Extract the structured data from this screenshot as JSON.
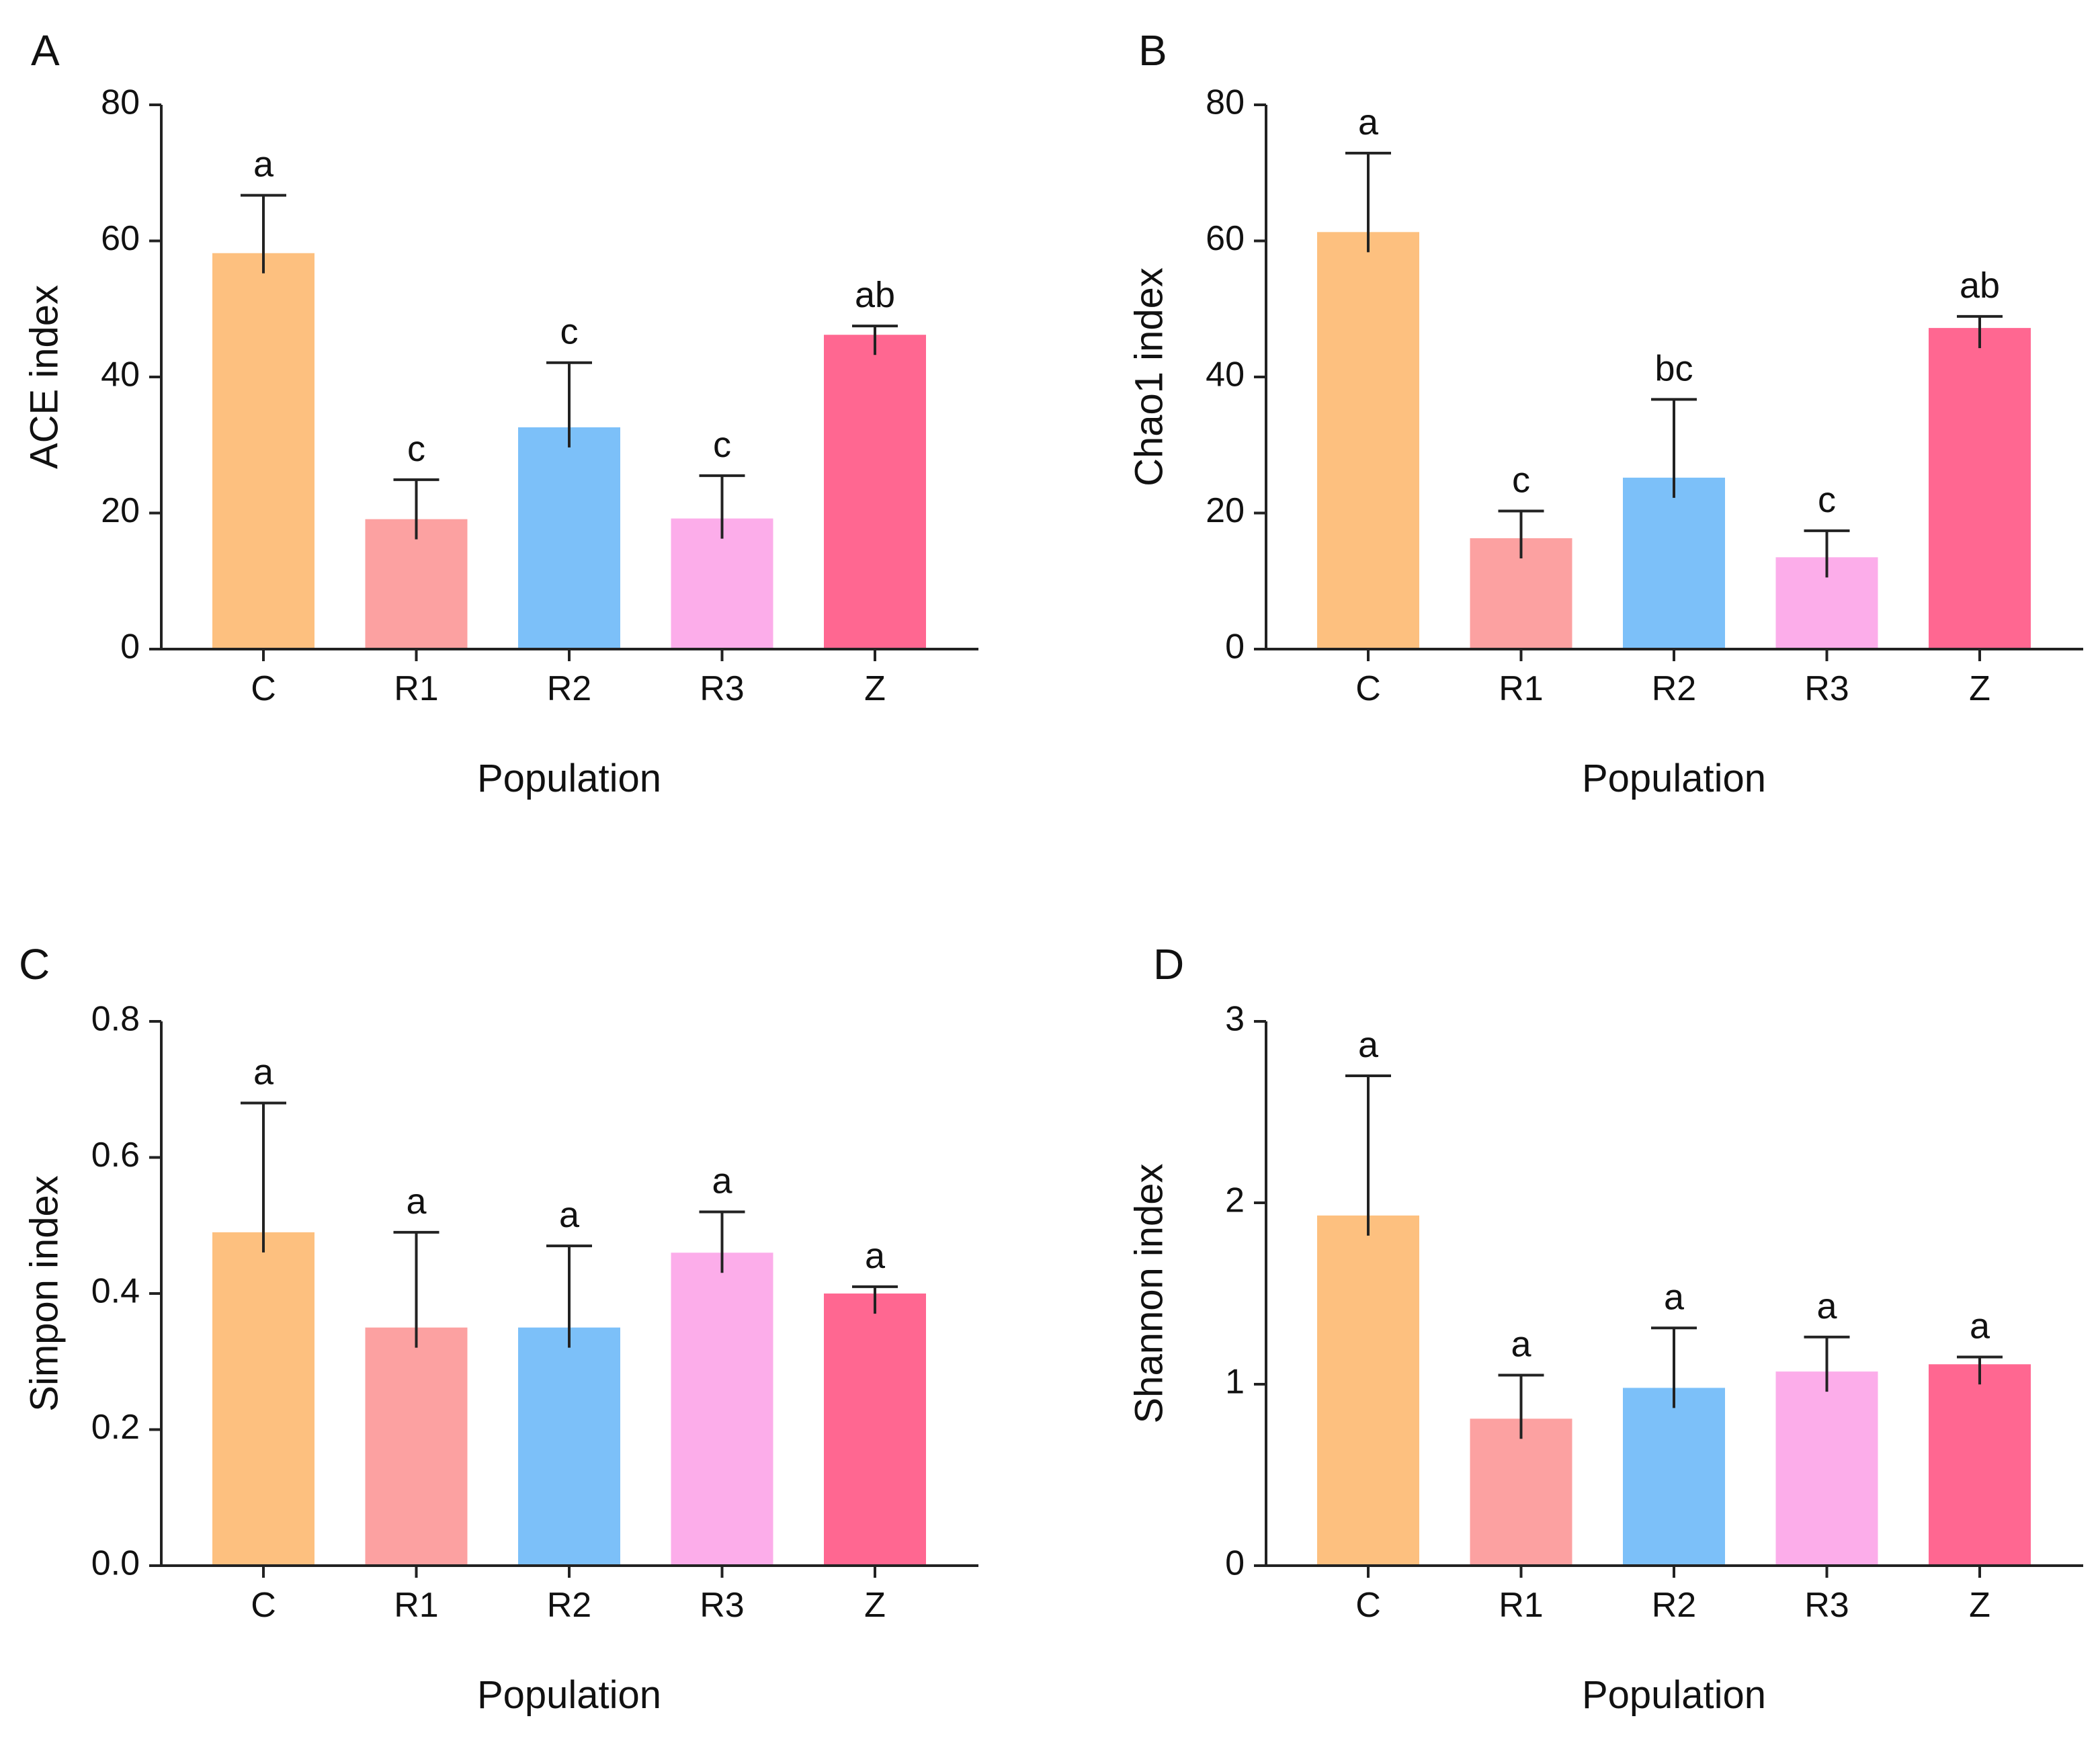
{
  "chart_data": [
    {
      "panel": "A",
      "type": "bar",
      "title": "",
      "xlabel": "Population",
      "ylabel": "ACE index",
      "categories": [
        "C",
        "R1",
        "R2",
        "R3",
        "Z"
      ],
      "values": [
        58.2,
        19.1,
        32.6,
        19.2,
        46.2
      ],
      "errors": [
        8.5,
        5.8,
        9.5,
        6.3,
        1.3
      ],
      "significance": [
        "a",
        "c",
        "c",
        "c",
        "ab"
      ],
      "colors": [
        "#FDC07F",
        "#FCA1A1",
        "#7CC0F9",
        "#FCADEA",
        "#FF6791"
      ],
      "ylim": [
        0,
        80
      ],
      "yticks": [
        0,
        20,
        40,
        60,
        80
      ],
      "ytick_labels": [
        "0",
        "20",
        "40",
        "60",
        "80"
      ]
    },
    {
      "panel": "B",
      "type": "bar",
      "title": "",
      "xlabel": "Population",
      "ylabel": "Chao1 index",
      "categories": [
        "C",
        "R1",
        "R2",
        "R3",
        "Z"
      ],
      "values": [
        61.3,
        16.3,
        25.2,
        13.5,
        47.2
      ],
      "errors": [
        11.6,
        4.0,
        11.5,
        3.9,
        1.7
      ],
      "significance": [
        "a",
        "c",
        "bc",
        "c",
        "ab"
      ],
      "colors": [
        "#FDC07F",
        "#FCA1A1",
        "#7CC0F9",
        "#FCADEA",
        "#FF6791"
      ],
      "ylim": [
        0,
        80
      ],
      "yticks": [
        0,
        20,
        40,
        60,
        80
      ],
      "ytick_labels": [
        "0",
        "20",
        "40",
        "60",
        "80"
      ]
    },
    {
      "panel": "C",
      "type": "bar",
      "title": "",
      "xlabel": "Population",
      "ylabel": "Simpon index",
      "categories": [
        "C",
        "R1",
        "R2",
        "R3",
        "Z"
      ],
      "values": [
        0.49,
        0.35,
        0.35,
        0.46,
        0.4
      ],
      "errors": [
        0.19,
        0.14,
        0.12,
        0.06,
        0.01
      ],
      "significance": [
        "a",
        "a",
        "a",
        "a",
        "a"
      ],
      "colors": [
        "#FDC07F",
        "#FCA1A1",
        "#7CC0F9",
        "#FCADEA",
        "#FF6791"
      ],
      "ylim": [
        0,
        0.8
      ],
      "yticks": [
        0,
        0.2,
        0.4,
        0.6,
        0.8
      ],
      "ytick_labels": [
        "0.0",
        "0.2",
        "0.4",
        "0.6",
        "0.8"
      ]
    },
    {
      "panel": "D",
      "type": "bar",
      "title": "",
      "xlabel": "Population",
      "ylabel": "Shannon index",
      "categories": [
        "C",
        "R1",
        "R2",
        "R3",
        "Z"
      ],
      "values": [
        1.93,
        0.81,
        0.98,
        1.07,
        1.11
      ],
      "errors": [
        0.77,
        0.24,
        0.33,
        0.19,
        0.04
      ],
      "significance": [
        "a",
        "a",
        "a",
        "a",
        "a"
      ],
      "colors": [
        "#FDC07F",
        "#FCA1A1",
        "#7CC0F9",
        "#FCADEA",
        "#FF6791"
      ],
      "ylim": [
        0,
        3
      ],
      "yticks": [
        0,
        1,
        2,
        3
      ],
      "ytick_labels": [
        "0",
        "1",
        "2",
        "3"
      ]
    }
  ]
}
